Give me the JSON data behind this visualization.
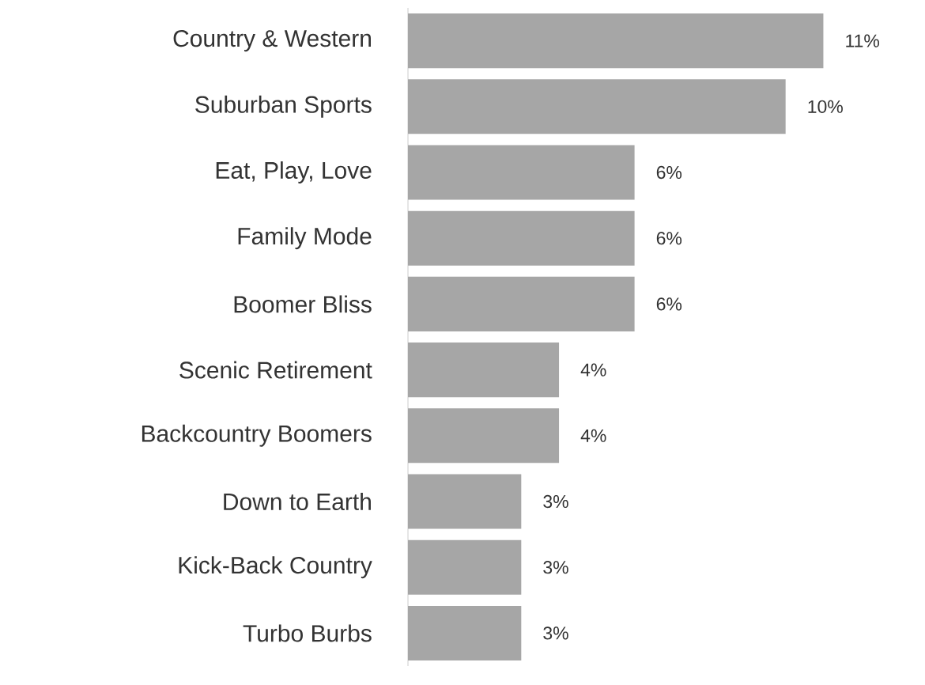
{
  "chart_data": {
    "type": "bar",
    "orientation": "horizontal",
    "categories": [
      "Country & Western",
      "Suburban Sports",
      "Eat, Play, Love",
      "Family Mode",
      "Boomer Bliss",
      "Scenic Retirement",
      "Backcountry Boomers",
      "Down to Earth",
      "Kick-Back Country",
      "Turbo Burbs"
    ],
    "values": [
      11,
      10,
      6,
      6,
      6,
      4,
      4,
      3,
      3,
      3
    ],
    "value_labels": [
      "11%",
      "10%",
      "6%",
      "6%",
      "6%",
      "4%",
      "4%",
      "3%",
      "3%",
      "3%"
    ],
    "color": "#a6a6a6",
    "tick_labels": "y"
  }
}
